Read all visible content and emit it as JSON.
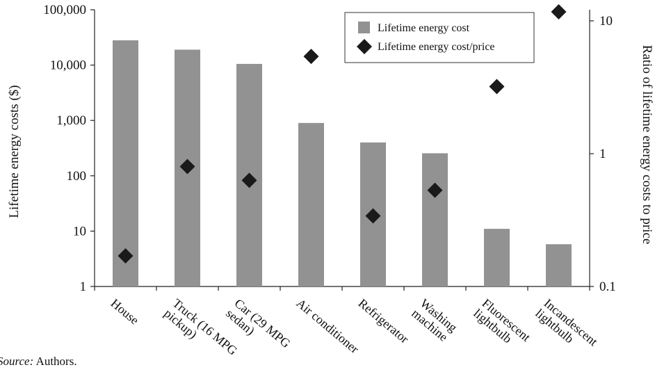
{
  "chart_data": {
    "type": "bar",
    "categories": [
      [
        "House"
      ],
      [
        "Truck (16 MPG",
        "pickup)"
      ],
      [
        "Car (29 MPG",
        "sedan)"
      ],
      [
        "Air conditioner"
      ],
      [
        "Refrigerator"
      ],
      [
        "Washing",
        "machine"
      ],
      [
        "Fluorescent",
        "lightbulb"
      ],
      [
        "Incandescent",
        "lightbulb"
      ]
    ],
    "series": [
      {
        "name": "Lifetime energy cost",
        "type": "bar",
        "axis": "left",
        "color": "#929292",
        "values": [
          28000,
          19000,
          10500,
          900,
          400,
          255,
          11,
          5.8
        ]
      },
      {
        "name": "Lifetime energy cost/price",
        "type": "scatter",
        "axis": "right",
        "marker": "diamond",
        "color": "#1a1a1a",
        "values": [
          0.17,
          0.8,
          0.63,
          5.4,
          0.34,
          0.53,
          3.2,
          11.7
        ]
      }
    ],
    "ylabel": "Lifetime energy costs ($)",
    "y2label": "Ratio of lifetime energy costs to price",
    "yscale": "log",
    "ylim": [
      1,
      100000
    ],
    "yticks": [
      "1",
      "10",
      "100",
      "1,000",
      "10,000",
      "100,000"
    ],
    "y2scale": "log",
    "y2lim": [
      0.1,
      12
    ],
    "y2ticks": [
      "0.1",
      "1",
      "10"
    ],
    "legend_position": "top-right",
    "grid": false
  },
  "source": {
    "label": "Source:",
    "text": " Authors."
  }
}
